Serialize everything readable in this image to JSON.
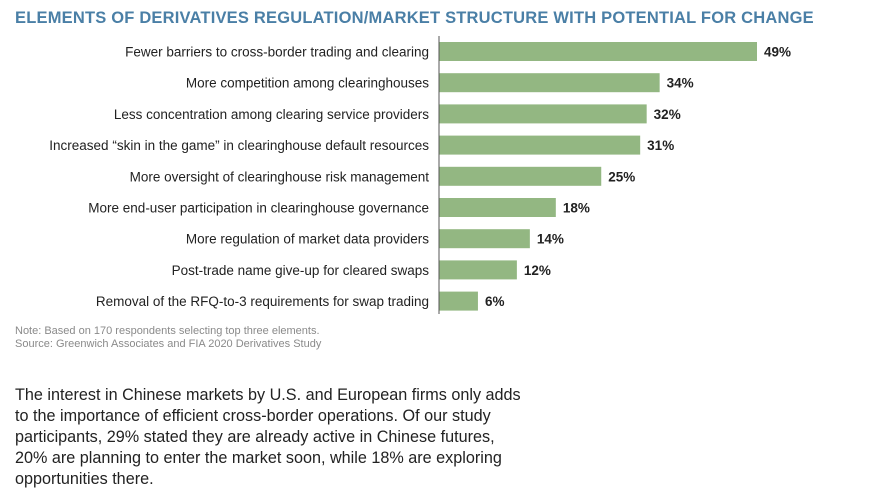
{
  "title": "ELEMENTS OF DERIVATIVES REGULATION/MARKET STRUCTURE WITH POTENTIAL FOR CHANGE",
  "notes": [
    "Note: Based on 170 respondents selecting top three elements.",
    "Source: Greenwich Associates and FIA 2020 Derivatives Study"
  ],
  "paragraph_lines": [
    "The interest in Chinese markets by U.S. and European firms only adds",
    "to the importance of efficient cross-border operations. Of our study",
    "participants, 29% stated they are already active in Chinese futures,",
    "20% are planning to enter the market soon, while 18% are exploring",
    "opportunities there."
  ],
  "colors": {
    "bar": "#93b782",
    "title": "#4a7fa6",
    "axis": "#555555"
  },
  "chart_data": {
    "type": "bar",
    "orientation": "horizontal",
    "categories": [
      "Fewer barriers to cross-border trading and clearing",
      "More competition among clearinghouses",
      "Less concentration among clearing service providers",
      "Increased “skin in the game” in clearinghouse default resources",
      "More oversight of clearinghouse risk management",
      "More end-user participation in clearinghouse governance",
      "More regulation of market data providers",
      "Post-trade name give-up for cleared swaps",
      "Removal of the RFQ-to-3 requirements for swap trading"
    ],
    "values": [
      49,
      34,
      32,
      31,
      25,
      18,
      14,
      12,
      6
    ],
    "value_labels": [
      "49%",
      "34%",
      "32%",
      "31%",
      "25%",
      "18%",
      "14%",
      "12%",
      "6%"
    ],
    "title": "ELEMENTS OF DERIVATIVES REGULATION/MARKET STRUCTURE WITH POTENTIAL FOR CHANGE",
    "xlim": [
      0,
      49
    ],
    "grid": false,
    "legend": "none"
  }
}
